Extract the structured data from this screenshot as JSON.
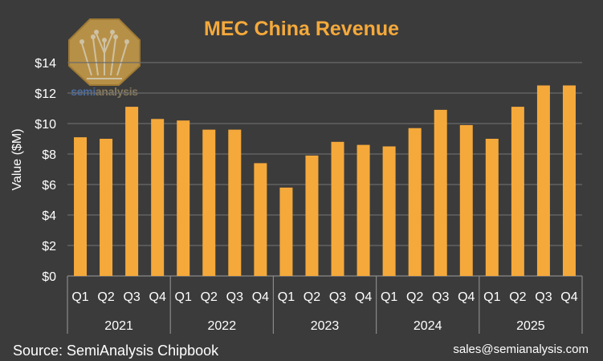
{
  "chart_data": {
    "type": "bar",
    "title": "MEC China Revenue",
    "ylabel": "Value ($M)",
    "xlabel": "",
    "ylim": [
      0,
      14
    ],
    "yticks": [
      0,
      2,
      4,
      6,
      8,
      10,
      12,
      14
    ],
    "ytick_labels": [
      "$0",
      "$2",
      "$4",
      "$6",
      "$8",
      "$10",
      "$12",
      "$14"
    ],
    "groups": [
      {
        "year": "2021",
        "quarters": [
          "Q1",
          "Q2",
          "Q3",
          "Q4"
        ],
        "values": [
          9.1,
          9.0,
          11.1,
          10.3
        ]
      },
      {
        "year": "2022",
        "quarters": [
          "Q1",
          "Q2",
          "Q3",
          "Q4"
        ],
        "values": [
          10.2,
          9.6,
          9.6,
          7.4
        ]
      },
      {
        "year": "2023",
        "quarters": [
          "Q1",
          "Q2",
          "Q3",
          "Q4"
        ],
        "values": [
          5.8,
          7.9,
          8.8,
          8.6
        ]
      },
      {
        "year": "2024",
        "quarters": [
          "Q1",
          "Q2",
          "Q3",
          "Q4"
        ],
        "values": [
          8.5,
          9.7,
          10.9,
          9.9
        ]
      },
      {
        "year": "2025",
        "quarters": [
          "Q1",
          "Q2",
          "Q3",
          "Q4"
        ],
        "values": [
          9.0,
          11.1,
          12.5,
          12.5
        ]
      }
    ],
    "grid": true,
    "legend": "none"
  },
  "footer": {
    "source": "Source: SemiAnalysis Chipbook",
    "contact": "sales@semianalysis.com"
  },
  "logo": {
    "text_part1": "semi",
    "text_part2": "analysis"
  },
  "colors": {
    "bar": "#f5a93b",
    "background": "#3b3b3b",
    "grid": "#6a6a6a",
    "text": "#ffffff",
    "title": "#f5a93b"
  }
}
